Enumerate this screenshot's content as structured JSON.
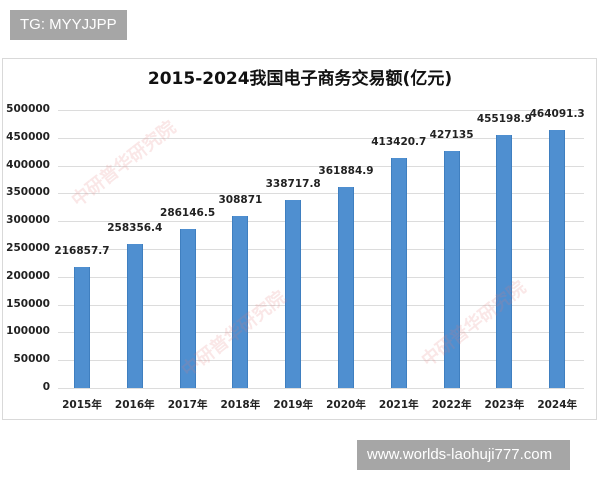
{
  "overlay": {
    "top_tag": "TG: MYYJJPP",
    "bottom_tag": "www.worlds-laohuji777.com"
  },
  "chart": {
    "title": "2015-2024我国电子商务交易额(亿元)",
    "bar_color": "#4f8fd0",
    "watermarks": [
      "中研普华研究院",
      "中研普华研究院",
      "中研普华研究院"
    ]
  },
  "chart_data": {
    "type": "bar",
    "title": "2015-2024我国电子商务交易额(亿元)",
    "xlabel": "",
    "ylabel": "",
    "categories": [
      "2015年",
      "2016年",
      "2017年",
      "2018年",
      "2019年",
      "2020年",
      "2021年",
      "2022年",
      "2023年",
      "2024年"
    ],
    "values": [
      216857.7,
      258356.4,
      286146.5,
      308871,
      338717.8,
      361884.9,
      413420.7,
      427135,
      455198.9,
      464091.3
    ],
    "value_labels": [
      "216857.7",
      "258356.4",
      "286146.5",
      "308871",
      "338717.8",
      "361884.9",
      "413420.7",
      "427135",
      "455198.9",
      "464091.3"
    ],
    "ylim": [
      0,
      500000
    ],
    "yticks": [
      "0",
      "50000",
      "100000",
      "150000",
      "200000",
      "250000",
      "300000",
      "350000",
      "400000",
      "450000",
      "500000"
    ],
    "grid": true,
    "legend": null
  }
}
